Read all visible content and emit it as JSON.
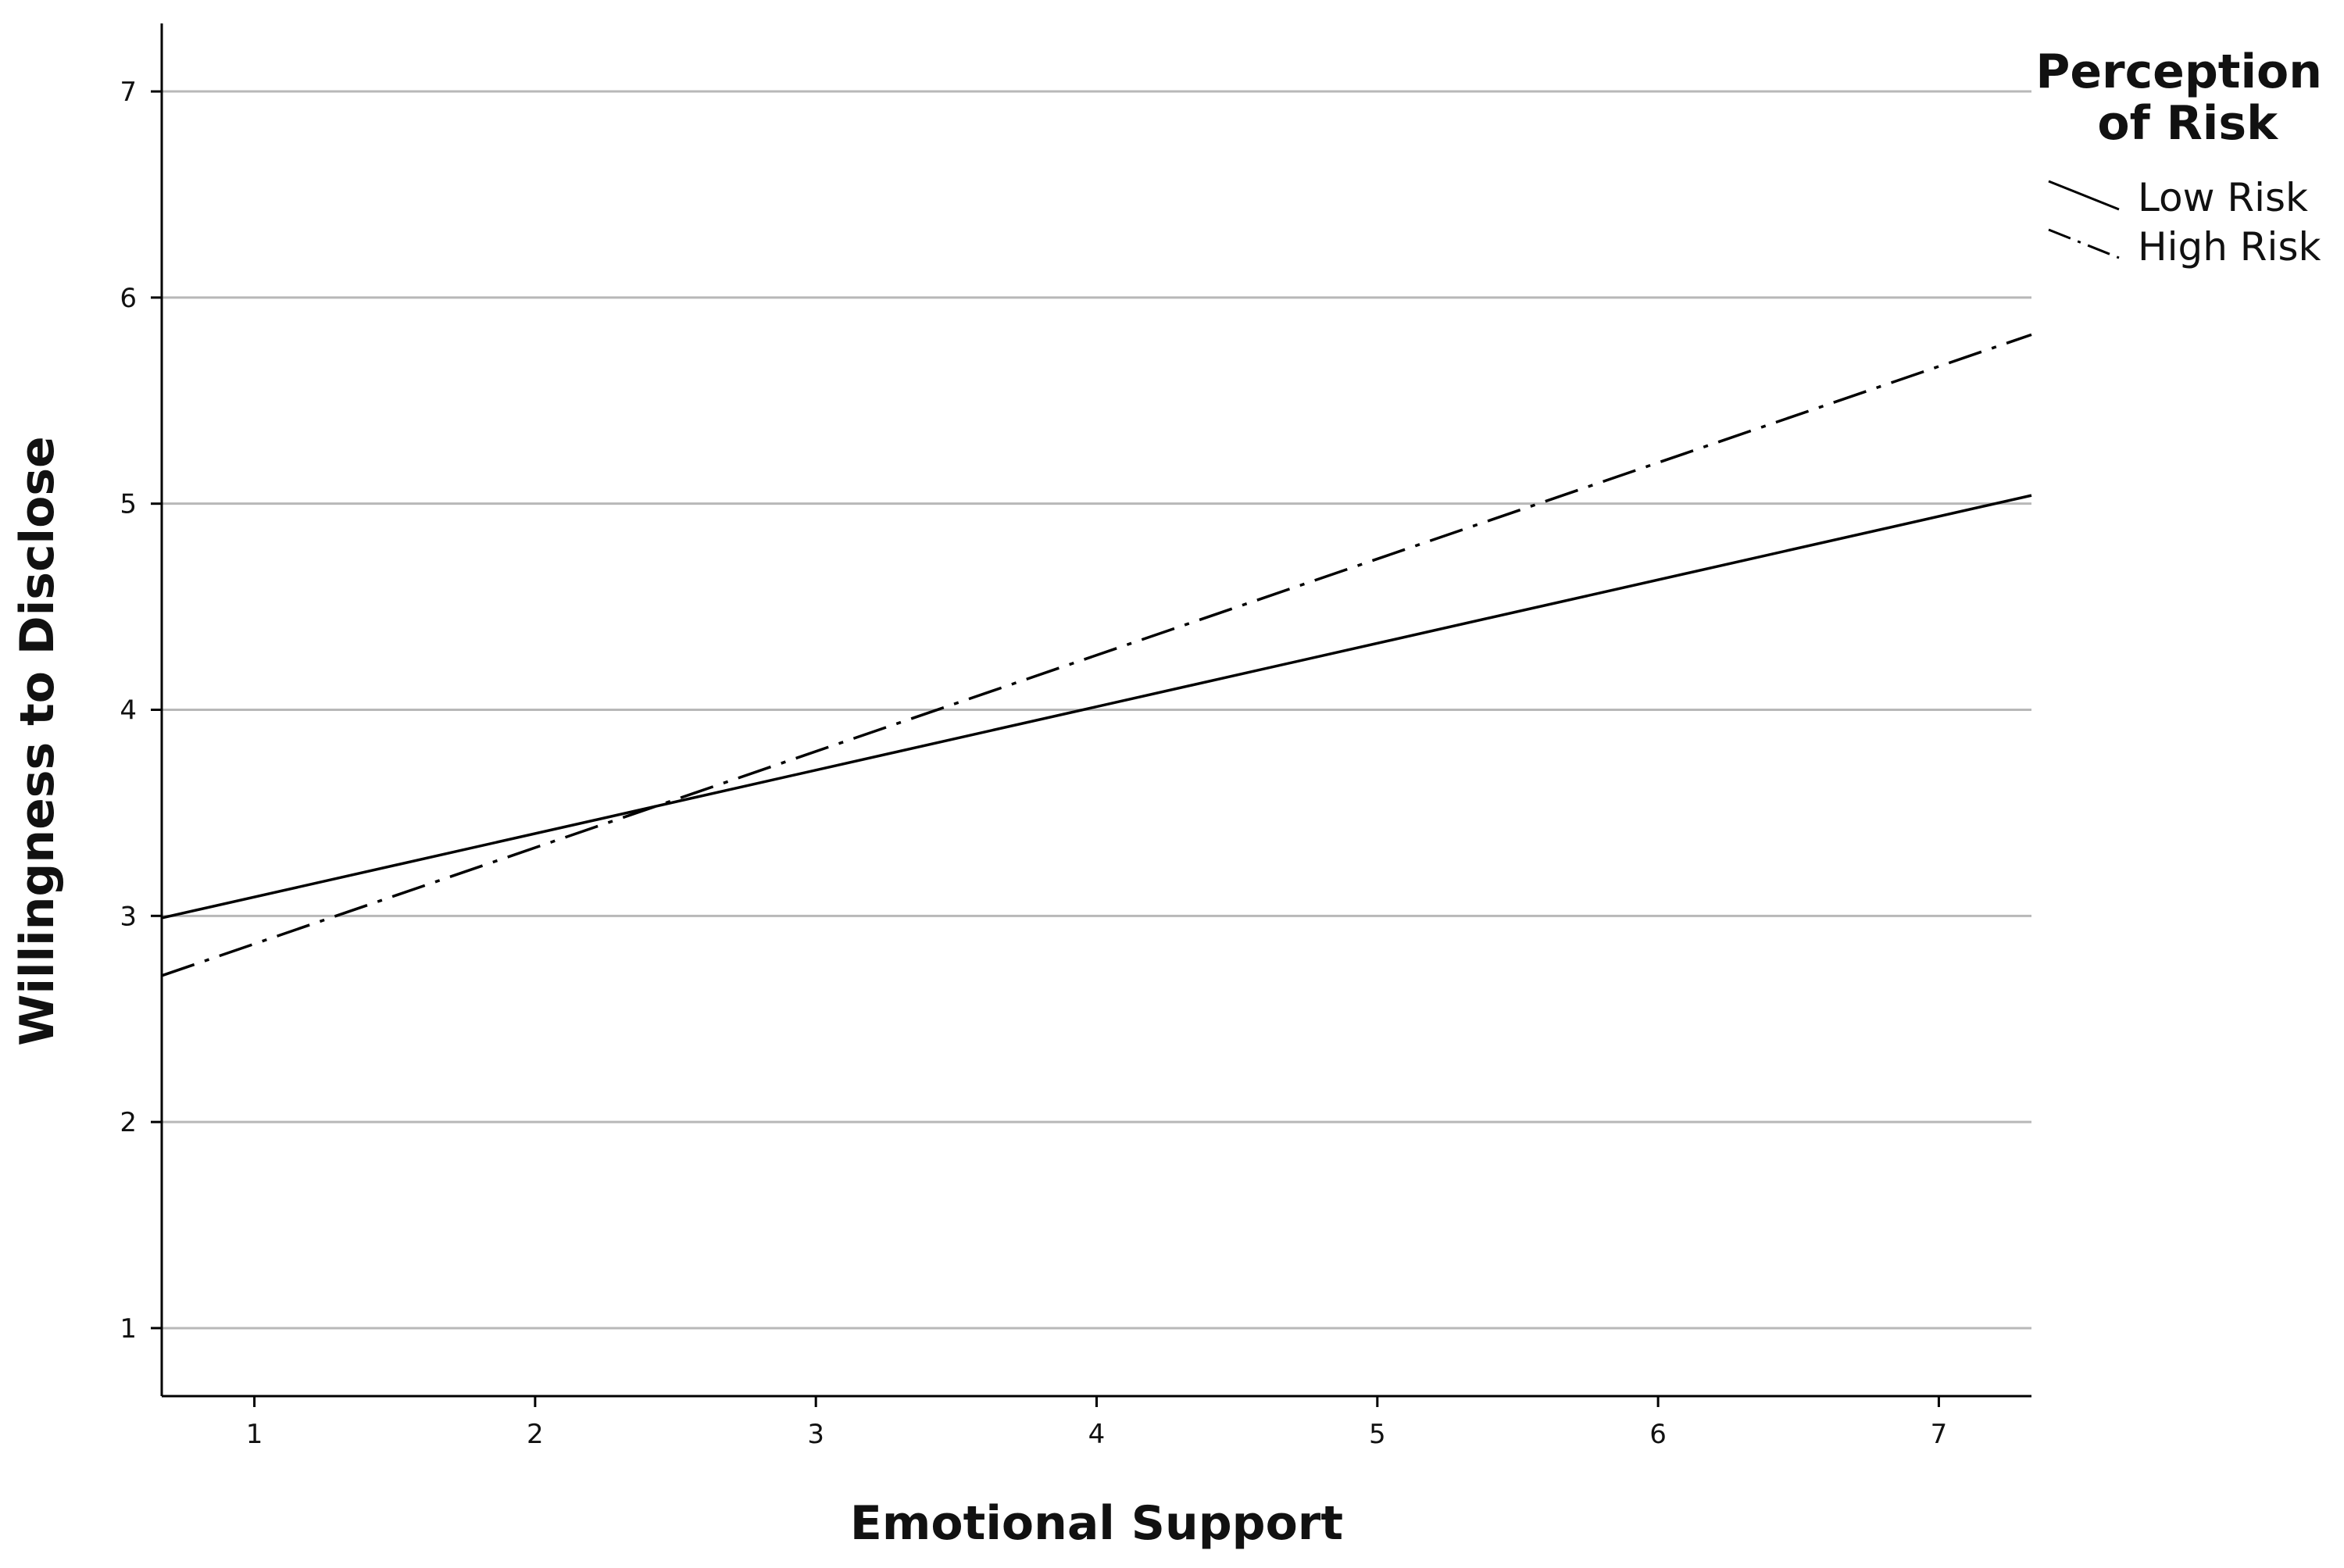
{
  "chart_data": {
    "type": "line",
    "xlabel": "Emotional Support",
    "ylabel": "Willingness to Disclose",
    "xlim": [
      0.67,
      7.33
    ],
    "ylim": [
      0.67,
      7.33
    ],
    "x_ticks": [
      1,
      2,
      3,
      4,
      5,
      6,
      7
    ],
    "y_ticks": [
      1,
      2,
      3,
      4,
      5,
      6,
      7
    ],
    "grid": "horizontal",
    "legend": {
      "title_lines": [
        "Perception",
        "of Risk"
      ],
      "placement": "top-right, outside plot"
    },
    "series": [
      {
        "name": "Low Risk",
        "style": "solid",
        "color": "#000000",
        "x": [
          0.67,
          7.33
        ],
        "y": [
          2.99,
          5.04
        ]
      },
      {
        "name": "High Risk",
        "style": "dash-dot",
        "color": "#000000",
        "x": [
          0.67,
          7.33
        ],
        "y": [
          2.71,
          5.82
        ]
      }
    ]
  }
}
